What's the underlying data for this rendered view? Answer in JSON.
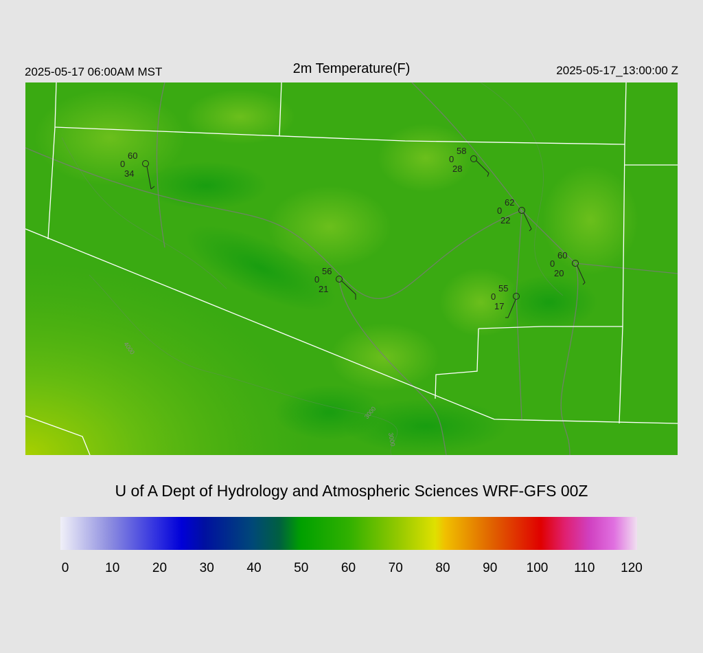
{
  "header": {
    "title": "2m Temperature(F)",
    "local_time": "2025-05-17 06:00AM MST",
    "valid_time": "2025-05-17_13:00:00 Z"
  },
  "stations": [
    {
      "temperature": "60",
      "code": "0",
      "dewpoint": "34"
    },
    {
      "temperature": "58",
      "code": "0",
      "dewpoint": "28"
    },
    {
      "temperature": "62",
      "code": "0",
      "dewpoint": "22"
    },
    {
      "temperature": "60",
      "code": "0",
      "dewpoint": "20"
    },
    {
      "temperature": "56",
      "code": "0",
      "dewpoint": "21"
    },
    {
      "temperature": "55",
      "code": "0",
      "dewpoint": "17"
    }
  ],
  "contour_labels": [
    "3000",
    "3000",
    "4000"
  ],
  "credit": "U of A Dept of Hydrology and Atmospheric Sciences WRF-GFS 00Z",
  "colorbar": {
    "ticks": [
      "0",
      "10",
      "20",
      "30",
      "40",
      "50",
      "60",
      "70",
      "80",
      "90",
      "100",
      "110",
      "120"
    ]
  }
}
